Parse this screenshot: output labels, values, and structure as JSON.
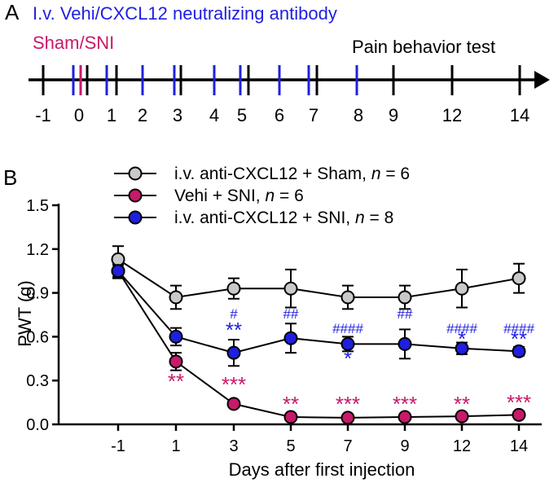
{
  "colors": {
    "black": "#000000",
    "blue": "#1f1fe0",
    "magenta": "#c8196a",
    "grey": "#c9c9c9"
  },
  "panel_a": {
    "label": "A",
    "title_blue": "I.v. Vehi/CXCL12 neutralizing antibody",
    "title_magenta": "Sham/SNI",
    "pain_label": "Pain behavior test",
    "ticks": [
      "-1",
      "0",
      "1",
      "2",
      "3",
      "4",
      "5",
      "6",
      "7",
      "8",
      "9",
      "12",
      "14"
    ]
  },
  "panel_b": {
    "label": "B"
  },
  "chart_data": {
    "type": "line",
    "xlabel": "Days after first injection",
    "ylabel": "PWT (g)",
    "categories": [
      "-1",
      "1",
      "3",
      "5",
      "7",
      "9",
      "12",
      "14"
    ],
    "yticks": [
      "0.0",
      "0.3",
      "0.6",
      "0.9",
      "1.2",
      "1.5"
    ],
    "ylim": [
      0,
      1.5
    ],
    "series": [
      {
        "name": "i.v. anti-CXCL12 + Sham, n = 6",
        "legend_prefix": "i.v. anti-CXCL12 + Sham,",
        "legend_n": "n",
        "legend_value": "= 6",
        "color": "#c9c9c9",
        "values": [
          1.13,
          0.87,
          0.93,
          0.93,
          0.87,
          0.87,
          0.93,
          1.0
        ],
        "errors": [
          0.09,
          0.08,
          0.07,
          0.13,
          0.08,
          0.08,
          0.13,
          0.1
        ]
      },
      {
        "name": "Vehi + SNI, n = 6",
        "legend_prefix": "Vehi + SNI,",
        "legend_n": "n",
        "legend_value": "= 6",
        "color": "#c8196a",
        "values": [
          1.05,
          0.43,
          0.14,
          0.05,
          0.045,
          0.05,
          0.055,
          0.065
        ],
        "errors": [
          0.04,
          0.06,
          0.02,
          0.01,
          0.01,
          0.01,
          0.01,
          0.015
        ]
      },
      {
        "name": "i.v. anti-CXCL12 + SNI, n = 8",
        "legend_prefix": "i.v. anti-CXCL12 + SNI,",
        "legend_n": "n",
        "legend_value": "= 8",
        "color": "#1f1fe0",
        "values": [
          1.05,
          0.6,
          0.49,
          0.59,
          0.55,
          0.55,
          0.52,
          0.5
        ],
        "errors": [
          0.05,
          0.06,
          0.09,
          0.1,
          0.05,
          0.1,
          0.04,
          0.03
        ]
      }
    ],
    "annotations": {
      "magenta_stars": [
        "**",
        "***",
        "**",
        "***",
        "***",
        "**",
        "***"
      ],
      "blue_stars": [
        "**",
        "*",
        "*",
        "**"
      ],
      "blue_hashes": [
        "#",
        "##",
        "####",
        "##",
        "####",
        "####"
      ]
    }
  }
}
